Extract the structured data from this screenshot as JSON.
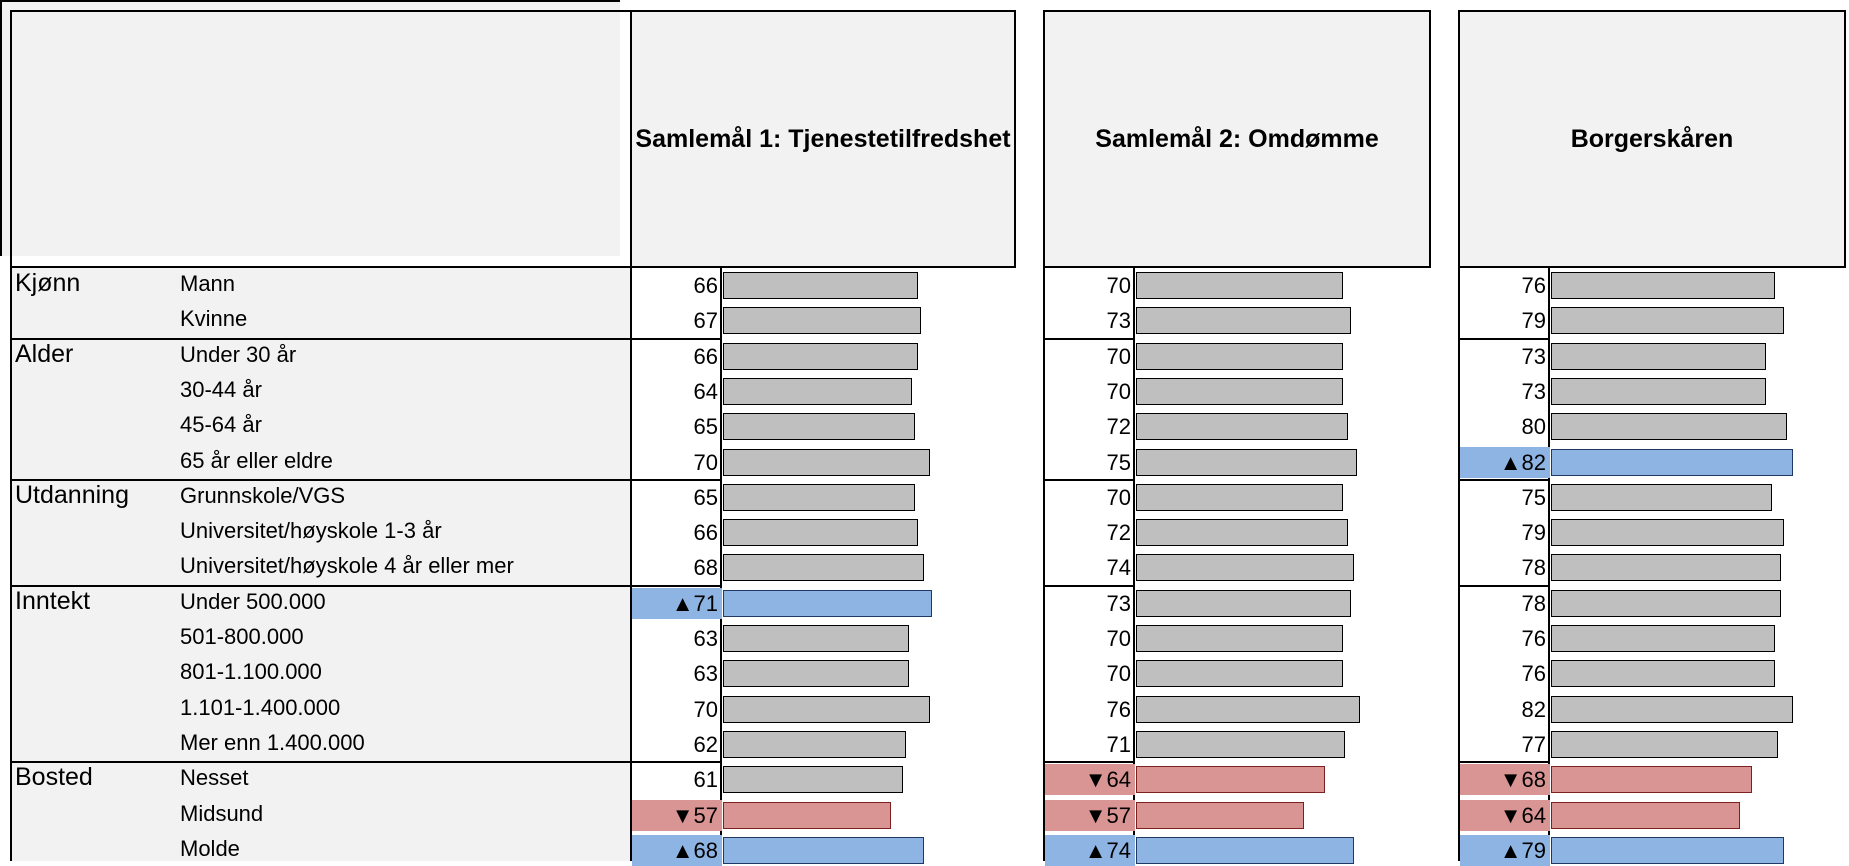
{
  "columns": [
    {
      "title": "Samlemål 1: Tjenestetilfredshet"
    },
    {
      "title": "Samlemål 2: Omdømme"
    },
    {
      "title": "Borgerskåren"
    }
  ],
  "groups": [
    {
      "label": "Kjønn",
      "rows": [
        "Mann",
        "Kvinne"
      ]
    },
    {
      "label": "Alder",
      "rows": [
        "Under 30 år",
        "30-44 år",
        "45-64 år",
        "65 år eller eldre"
      ]
    },
    {
      "label": "Utdanning",
      "rows": [
        "Grunnskole/VGS",
        "Universitet/høyskole 1-3 år",
        "Universitet/høyskole 4 år eller mer"
      ]
    },
    {
      "label": "Inntekt",
      "rows": [
        "Under 500.000",
        "501-800.000",
        "801-1.100.000",
        "1.101-1.400.000",
        "Mer enn 1.400.000"
      ]
    },
    {
      "label": "Bosted",
      "rows": [
        "Nesset",
        "Midsund",
        "Molde"
      ]
    }
  ],
  "chart_data": {
    "type": "bar",
    "orientation": "horizontal",
    "categories": [
      "Mann",
      "Kvinne",
      "Under 30 år",
      "30-44 år",
      "45-64 år",
      "65 år eller eldre",
      "Grunnskole/VGS",
      "Universitet/høyskole 1-3 år",
      "Universitet/høyskole 4 år eller mer",
      "Under 500.000",
      "501-800.000",
      "801-1.100.000",
      "1.101-1.400.000",
      "Mer enn 1.400.000",
      "Nesset",
      "Midsund",
      "Molde"
    ],
    "series": [
      {
        "name": "Samlemål 1: Tjenestetilfredshet",
        "values": [
          66,
          67,
          66,
          64,
          65,
          70,
          65,
          66,
          68,
          71,
          63,
          63,
          70,
          62,
          61,
          57,
          68
        ],
        "flags": [
          "",
          "",
          "",
          "",
          "",
          "",
          "",
          "",
          "",
          "up",
          "",
          "",
          "",
          "",
          "",
          "down",
          "up"
        ]
      },
      {
        "name": "Samlemål 2: Omdømme",
        "values": [
          70,
          73,
          70,
          70,
          72,
          75,
          70,
          72,
          74,
          73,
          70,
          70,
          76,
          71,
          64,
          57,
          74
        ],
        "flags": [
          "",
          "",
          "",
          "",
          "",
          "",
          "",
          "",
          "",
          "",
          "",
          "",
          "",
          "",
          "down",
          "down",
          "up"
        ]
      },
      {
        "name": "Borgerskåren",
        "values": [
          76,
          79,
          73,
          73,
          80,
          82,
          75,
          79,
          78,
          78,
          76,
          76,
          82,
          77,
          68,
          64,
          79
        ],
        "flags": [
          "",
          "",
          "",
          "",
          "",
          "up",
          "",
          "",
          "",
          "",
          "",
          "",
          "",
          "",
          "down",
          "down",
          "up"
        ]
      }
    ],
    "flag_symbols": {
      "up": "▲",
      "down": "▼"
    },
    "colors": {
      "neutral": "#bfbfbf",
      "up": "#8eb4e3",
      "down": "#d99594",
      "header": "#f2f2f2"
    },
    "xlim": [
      0,
      100
    ]
  }
}
